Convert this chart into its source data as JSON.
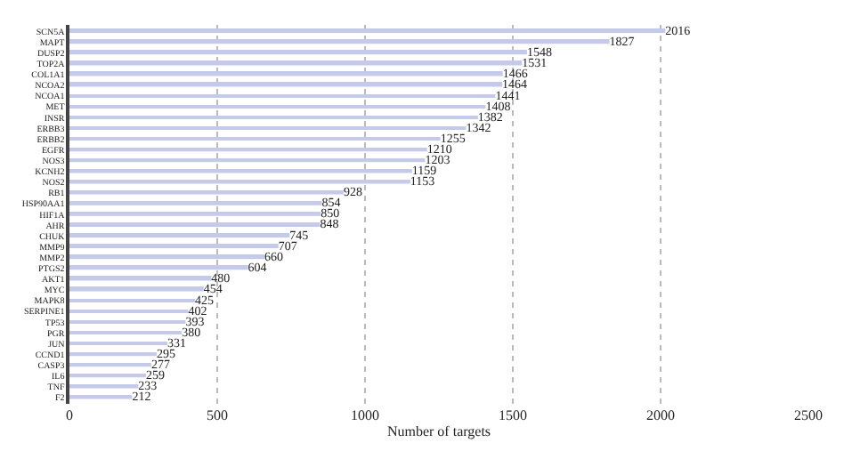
{
  "chart_data": {
    "type": "bar",
    "orientation": "horizontal",
    "xlabel": "Number of targets",
    "categories": [
      "SCN5A",
      "MAPT",
      "DUSP2",
      "TOP2A",
      "COL1A1",
      "NCOA2",
      "NCOA1",
      "MET",
      "INSR",
      "ERBB3",
      "ERBB2",
      "EGFR",
      "NOS3",
      "KCNH2",
      "NOS2",
      "RB1",
      "HSP90AA1",
      "HIF1A",
      "AHR",
      "CHUK",
      "MMP9",
      "MMP2",
      "PTGS2",
      "AKT1",
      "MYC",
      "MAPK8",
      "SERPINE1",
      "TP53",
      "PGR",
      "JUN",
      "CCND1",
      "CASP3",
      "IL6",
      "TNF",
      "F2"
    ],
    "values": [
      2016,
      1827,
      1548,
      1531,
      1466,
      1464,
      1441,
      1408,
      1382,
      1342,
      1255,
      1210,
      1203,
      1159,
      1153,
      928,
      854,
      850,
      848,
      745,
      707,
      660,
      604,
      480,
      454,
      425,
      402,
      393,
      380,
      331,
      295,
      277,
      259,
      233,
      212
    ],
    "color": "#c5cae9",
    "data_labels": true,
    "xlim": [
      0,
      2500
    ],
    "xticks": [
      0,
      500,
      1000,
      1500,
      2000,
      2500
    ],
    "grid": "x"
  }
}
